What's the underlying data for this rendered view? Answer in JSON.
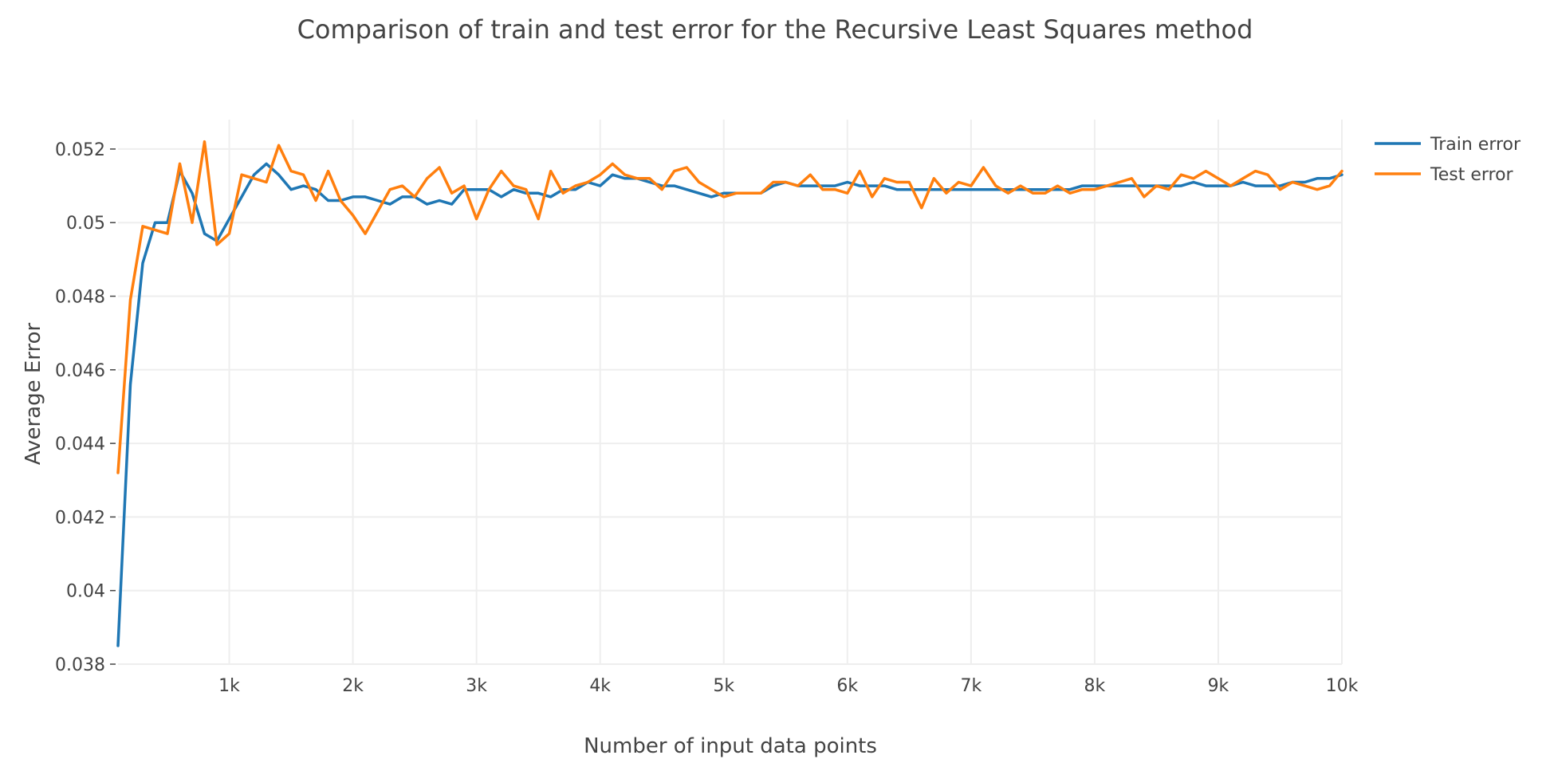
{
  "chart_data": {
    "type": "line",
    "title": "Comparison of train and test error for the Recursive Least Squares method",
    "xlabel": "Number of input data points",
    "ylabel": "Average Error",
    "xlim": [
      100,
      10000
    ],
    "ylim": [
      0.038,
      0.0528
    ],
    "xticks": [
      {
        "value": 1000,
        "label": "1k"
      },
      {
        "value": 2000,
        "label": "2k"
      },
      {
        "value": 3000,
        "label": "3k"
      },
      {
        "value": 4000,
        "label": "4k"
      },
      {
        "value": 5000,
        "label": "5k"
      },
      {
        "value": 6000,
        "label": "6k"
      },
      {
        "value": 7000,
        "label": "7k"
      },
      {
        "value": 8000,
        "label": "8k"
      },
      {
        "value": 9000,
        "label": "9k"
      },
      {
        "value": 10000,
        "label": "10k"
      }
    ],
    "yticks": [
      {
        "value": 0.038,
        "label": "0.038"
      },
      {
        "value": 0.04,
        "label": "0.04"
      },
      {
        "value": 0.042,
        "label": "0.042"
      },
      {
        "value": 0.044,
        "label": "0.044"
      },
      {
        "value": 0.046,
        "label": "0.046"
      },
      {
        "value": 0.048,
        "label": "0.048"
      },
      {
        "value": 0.05,
        "label": "0.05"
      },
      {
        "value": 0.052,
        "label": "0.052"
      }
    ],
    "grid": true,
    "legend_position": "top-right",
    "x": [
      100,
      200,
      300,
      400,
      500,
      600,
      700,
      800,
      900,
      1000,
      1100,
      1200,
      1300,
      1400,
      1500,
      1600,
      1700,
      1800,
      1900,
      2000,
      2100,
      2200,
      2300,
      2400,
      2500,
      2600,
      2700,
      2800,
      2900,
      3000,
      3100,
      3200,
      3300,
      3400,
      3500,
      3600,
      3700,
      3800,
      3900,
      4000,
      4100,
      4200,
      4300,
      4400,
      4500,
      4600,
      4700,
      4800,
      4900,
      5000,
      5100,
      5200,
      5300,
      5400,
      5500,
      5600,
      5700,
      5800,
      5900,
      6000,
      6100,
      6200,
      6300,
      6400,
      6500,
      6600,
      6700,
      6800,
      6900,
      7000,
      7100,
      7200,
      7300,
      7400,
      7500,
      7600,
      7700,
      7800,
      7900,
      8000,
      8100,
      8200,
      8300,
      8400,
      8500,
      8600,
      8700,
      8800,
      8900,
      9000,
      9100,
      9200,
      9300,
      9400,
      9500,
      9600,
      9700,
      9800,
      9900,
      10000
    ],
    "series": [
      {
        "name": "Train error",
        "color": "#1f77b4",
        "values": [
          0.0385,
          0.0456,
          0.0489,
          0.05,
          0.05,
          0.0514,
          0.0508,
          0.0497,
          0.0495,
          0.0501,
          0.0507,
          0.0513,
          0.0516,
          0.0513,
          0.0509,
          0.051,
          0.0509,
          0.0506,
          0.0506,
          0.0507,
          0.0507,
          0.0506,
          0.0505,
          0.0507,
          0.0507,
          0.0505,
          0.0506,
          0.0505,
          0.0509,
          0.0509,
          0.0509,
          0.0507,
          0.0509,
          0.0508,
          0.0508,
          0.0507,
          0.0509,
          0.0509,
          0.0511,
          0.051,
          0.0513,
          0.0512,
          0.0512,
          0.0511,
          0.051,
          0.051,
          0.0509,
          0.0508,
          0.0507,
          0.0508,
          0.0508,
          0.0508,
          0.0508,
          0.051,
          0.0511,
          0.051,
          0.051,
          0.051,
          0.051,
          0.0511,
          0.051,
          0.051,
          0.051,
          0.0509,
          0.0509,
          0.0509,
          0.0509,
          0.0509,
          0.0509,
          0.0509,
          0.0509,
          0.0509,
          0.0509,
          0.0509,
          0.0509,
          0.0509,
          0.0509,
          0.0509,
          0.051,
          0.051,
          0.051,
          0.051,
          0.051,
          0.051,
          0.051,
          0.051,
          0.051,
          0.0511,
          0.051,
          0.051,
          0.051,
          0.0511,
          0.051,
          0.051,
          0.051,
          0.0511,
          0.0511,
          0.0512,
          0.0512,
          0.0513
        ]
      },
      {
        "name": "Test error",
        "color": "#ff7f0e",
        "values": [
          0.0432,
          0.0479,
          0.0499,
          0.0498,
          0.0497,
          0.0516,
          0.05,
          0.0522,
          0.0494,
          0.0497,
          0.0513,
          0.0512,
          0.0511,
          0.0521,
          0.0514,
          0.0513,
          0.0506,
          0.0514,
          0.0506,
          0.0502,
          0.0497,
          0.0503,
          0.0509,
          0.051,
          0.0507,
          0.0512,
          0.0515,
          0.0508,
          0.051,
          0.0501,
          0.0509,
          0.0514,
          0.051,
          0.0509,
          0.0501,
          0.0514,
          0.0508,
          0.051,
          0.0511,
          0.0513,
          0.0516,
          0.0513,
          0.0512,
          0.0512,
          0.0509,
          0.0514,
          0.0515,
          0.0511,
          0.0509,
          0.0507,
          0.0508,
          0.0508,
          0.0508,
          0.0511,
          0.0511,
          0.051,
          0.0513,
          0.0509,
          0.0509,
          0.0508,
          0.0514,
          0.0507,
          0.0512,
          0.0511,
          0.0511,
          0.0504,
          0.0512,
          0.0508,
          0.0511,
          0.051,
          0.0515,
          0.051,
          0.0508,
          0.051,
          0.0508,
          0.0508,
          0.051,
          0.0508,
          0.0509,
          0.0509,
          0.051,
          0.0511,
          0.0512,
          0.0507,
          0.051,
          0.0509,
          0.0513,
          0.0512,
          0.0514,
          0.0512,
          0.051,
          0.0512,
          0.0514,
          0.0513,
          0.0509,
          0.0511,
          0.051,
          0.0509,
          0.051,
          0.0514
        ]
      }
    ]
  }
}
